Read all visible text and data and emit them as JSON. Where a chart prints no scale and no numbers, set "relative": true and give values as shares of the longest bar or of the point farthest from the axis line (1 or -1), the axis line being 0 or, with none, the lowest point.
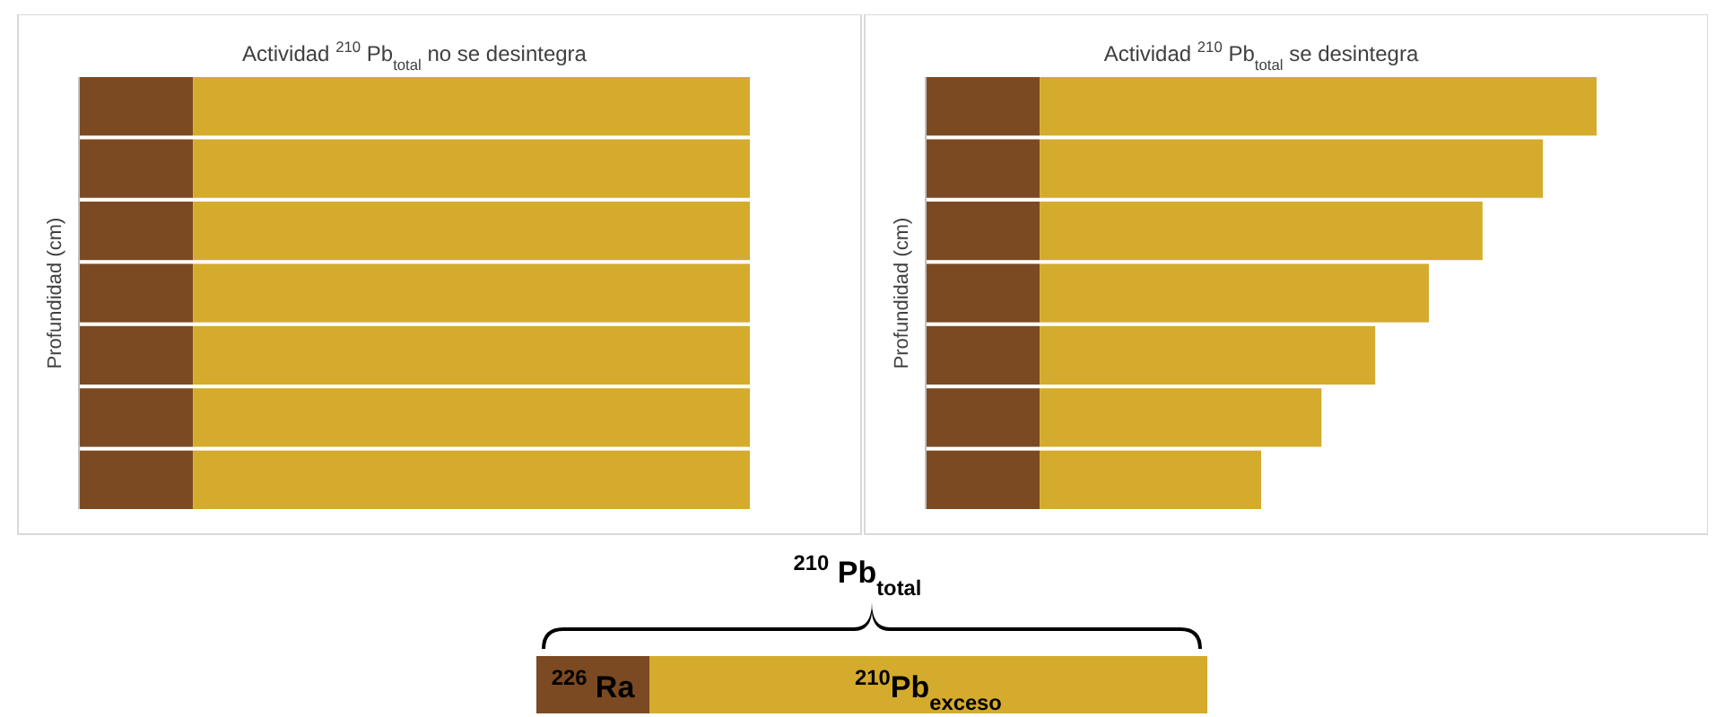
{
  "chart_data": [
    {
      "type": "bar",
      "orientation": "horizontal",
      "stacked": true,
      "relative": true,
      "title": "Actividad $^{210}$ Pb$_{total}$ no se desintegra",
      "ylabel": "Profundidad (cm)",
      "categories": [
        null,
        null,
        null,
        null,
        null,
        null,
        null
      ],
      "legend": "bottom",
      "annotations": [
        "$^{210}$ Pb$_{total}$"
      ],
      "series": [
        {
          "name": "$^{226}$ Ra",
          "color": "#7b4a22",
          "values": [
            0.17,
            0.17,
            0.17,
            0.17,
            0.17,
            0.17,
            0.17
          ]
        },
        {
          "name": "$^{210}$Pb$_{exceso}$",
          "color": "#d4ab2d",
          "values": [
            0.83,
            0.83,
            0.83,
            0.83,
            0.83,
            0.83,
            0.83
          ]
        }
      ]
    },
    {
      "type": "bar",
      "orientation": "horizontal",
      "stacked": true,
      "relative": true,
      "title": "Actividad $^{210}$ Pb$_{total}$ se desintegra",
      "ylabel": "Profundidad (cm)",
      "categories": [
        null,
        null,
        null,
        null,
        null,
        null,
        null
      ],
      "series": [
        {
          "color": "#7b4a22",
          "values": [
            0.17,
            0.17,
            0.17,
            0.17,
            0.17,
            0.17,
            0.17
          ]
        },
        {
          "color": "#d4ab2d",
          "values": [
            0.83,
            0.75,
            0.66,
            0.58,
            0.5,
            0.42,
            0.33
          ]
        }
      ]
    }
  ]
}
